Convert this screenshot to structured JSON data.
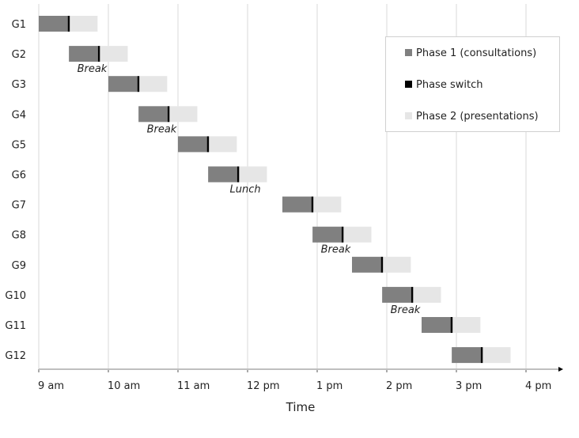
{
  "chart_data": {
    "type": "gantt",
    "xlabel": "Time",
    "x_ticks": [
      "9 am",
      "10 am",
      "11 am",
      "12 pm",
      "1 pm",
      "2 pm",
      "3 pm",
      "4 pm"
    ],
    "x_range_minutes_from_9am": [
      0,
      420
    ],
    "grid": "vertical",
    "legend_position": "top-right",
    "legend": [
      "Phase 1 (consultations)",
      "Phase switch",
      "Phase 2 (presentations)"
    ],
    "colors": {
      "phase1": "#808080",
      "switch": "#000000",
      "phase2": "#e6e6e6",
      "grid": "#d9d9d9",
      "axis": "#bfbfbf"
    },
    "phase1_minutes": 25,
    "phase2_minutes": 25,
    "groups": [
      {
        "name": "G1",
        "start_minutes": 0
      },
      {
        "name": "G2",
        "start_minutes": 26
      },
      {
        "name": "G3",
        "start_minutes": 60
      },
      {
        "name": "G4",
        "start_minutes": 86
      },
      {
        "name": "G5",
        "start_minutes": 120
      },
      {
        "name": "G6",
        "start_minutes": 146
      },
      {
        "name": "G7",
        "start_minutes": 210
      },
      {
        "name": "G8",
        "start_minutes": 236
      },
      {
        "name": "G9",
        "start_minutes": 270
      },
      {
        "name": "G10",
        "start_minutes": 296
      },
      {
        "name": "G11",
        "start_minutes": 330
      },
      {
        "name": "G12",
        "start_minutes": 356
      }
    ],
    "annotations": [
      {
        "text": "Break",
        "after_group": "G2",
        "at_minutes": 46
      },
      {
        "text": "Break",
        "after_group": "G4",
        "at_minutes": 106
      },
      {
        "text": "Lunch",
        "after_group": "G6",
        "at_minutes": 178
      },
      {
        "text": "Break",
        "after_group": "G8",
        "at_minutes": 256
      },
      {
        "text": "Break",
        "after_group": "G10",
        "at_minutes": 316
      }
    ]
  }
}
